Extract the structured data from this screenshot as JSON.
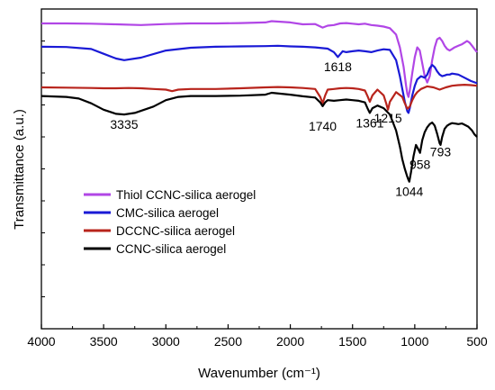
{
  "chart_data": {
    "type": "line",
    "title": "",
    "xlabel": "Wavenumber (cm⁻¹)",
    "ylabel": "Transmittance (a.u.)",
    "xlim": [
      4000,
      500
    ],
    "x_reversed": true,
    "ylim": [
      0,
      100
    ],
    "y_tick_labels_shown": false,
    "x_ticks": [
      4000,
      3500,
      3000,
      2500,
      2000,
      1500,
      1000,
      500
    ],
    "grid": false,
    "legend_position": "center-left",
    "series": [
      {
        "name": "Thiol CCNC-silica aerogel",
        "color": "#b146e6",
        "x": [
          4000,
          3800,
          3600,
          3400,
          3200,
          3000,
          2800,
          2600,
          2400,
          2200,
          2150,
          2000,
          1900,
          1800,
          1740,
          1700,
          1650,
          1600,
          1550,
          1500,
          1450,
          1400,
          1350,
          1300,
          1250,
          1200,
          1150,
          1120,
          1090,
          1070,
          1060,
          1050,
          1040,
          1020,
          1000,
          980,
          960,
          940,
          920,
          900,
          880,
          860,
          840,
          820,
          800,
          780,
          760,
          740,
          720,
          700,
          680,
          650,
          620,
          600,
          580,
          560,
          540,
          520,
          500
        ],
        "y": [
          95.5,
          95.5,
          95.4,
          95.2,
          95.0,
          95.3,
          95.5,
          95.5,
          95.6,
          95.8,
          96.2,
          95.8,
          95.2,
          95.3,
          94.2,
          94.8,
          95.0,
          95.5,
          95.6,
          95.4,
          95.2,
          95.4,
          95.0,
          94.8,
          94.5,
          94.0,
          92.0,
          88.0,
          82.0,
          76.0,
          73.5,
          72.5,
          74.5,
          80.0,
          85.0,
          88.0,
          87.0,
          83.0,
          79.0,
          77.0,
          79.0,
          84.0,
          88.0,
          90.5,
          91.0,
          90.0,
          88.5,
          87.5,
          87.0,
          87.5,
          88.0,
          88.5,
          89.0,
          89.5,
          90.0,
          89.5,
          88.5,
          87.5,
          86.5
        ]
      },
      {
        "name": "CMC-silica aerogel",
        "color": "#1a1ad6",
        "x": [
          4000,
          3800,
          3600,
          3500,
          3400,
          3335,
          3200,
          3000,
          2800,
          2600,
          2400,
          2200,
          2100,
          2000,
          1900,
          1800,
          1700,
          1650,
          1618,
          1580,
          1550,
          1500,
          1450,
          1400,
          1350,
          1300,
          1250,
          1200,
          1150,
          1120,
          1100,
          1080,
          1060,
          1050,
          1040,
          1020,
          1000,
          980,
          950,
          920,
          900,
          880,
          860,
          840,
          820,
          800,
          780,
          760,
          740,
          720,
          700,
          650,
          600,
          550,
          500
        ],
        "y": [
          88.2,
          88.1,
          87.5,
          86.0,
          84.5,
          84.0,
          84.8,
          87.0,
          87.9,
          88.2,
          88.3,
          88.4,
          88.5,
          88.3,
          88.2,
          88.0,
          87.6,
          86.5,
          85.0,
          86.8,
          86.5,
          86.8,
          87.0,
          86.8,
          86.5,
          87.0,
          87.4,
          87.2,
          84.0,
          79.0,
          75.0,
          71.0,
          68.0,
          67.5,
          69.0,
          73.0,
          76.0,
          78.0,
          79.0,
          78.5,
          79.5,
          81.5,
          82.5,
          81.8,
          80.5,
          79.5,
          79.0,
          79.2,
          79.5,
          79.5,
          79.8,
          79.5,
          78.5,
          77.5,
          76.8
        ]
      },
      {
        "name": "DCCNC-silica aerogel",
        "color": "#b8241c",
        "x": [
          4000,
          3800,
          3600,
          3500,
          3400,
          3300,
          3200,
          3100,
          3000,
          2950,
          2900,
          2800,
          2600,
          2400,
          2200,
          2100,
          2000,
          1900,
          1800,
          1760,
          1740,
          1720,
          1700,
          1650,
          1600,
          1550,
          1500,
          1450,
          1400,
          1380,
          1361,
          1340,
          1300,
          1250,
          1230,
          1215,
          1200,
          1150,
          1100,
          1080,
          1060,
          1040,
          1020,
          1000,
          980,
          950,
          900,
          850,
          800,
          750,
          700,
          650,
          600,
          550,
          500
        ],
        "y": [
          75.5,
          75.4,
          75.3,
          75.2,
          75.2,
          75.3,
          75.2,
          75.0,
          74.8,
          74.3,
          74.8,
          75.0,
          75.0,
          75.2,
          75.5,
          75.6,
          75.5,
          75.3,
          75.0,
          72.5,
          70.5,
          73.0,
          74.8,
          75.0,
          75.2,
          75.3,
          75.2,
          75.0,
          74.5,
          72.8,
          71.0,
          73.0,
          74.8,
          73.0,
          70.5,
          68.5,
          71.0,
          74.0,
          72.5,
          70.5,
          68.8,
          69.5,
          71.5,
          73.0,
          74.0,
          75.0,
          75.8,
          75.5,
          74.8,
          75.5,
          76.0,
          76.2,
          76.3,
          76.2,
          76.0
        ]
      },
      {
        "name": "CCNC-silica aerogel",
        "color": "#000000",
        "x": [
          4000,
          3800,
          3700,
          3600,
          3500,
          3400,
          3335,
          3250,
          3100,
          3000,
          2900,
          2800,
          2600,
          2400,
          2200,
          2150,
          2000,
          1900,
          1800,
          1760,
          1740,
          1720,
          1700,
          1650,
          1600,
          1550,
          1500,
          1450,
          1400,
          1380,
          1361,
          1340,
          1300,
          1250,
          1200,
          1150,
          1120,
          1100,
          1080,
          1060,
          1050,
          1044,
          1030,
          1010,
          990,
          970,
          958,
          940,
          920,
          900,
          880,
          860,
          840,
          820,
          800,
          793,
          780,
          760,
          740,
          720,
          700,
          680,
          650,
          620,
          600,
          570,
          540,
          520,
          500
        ],
        "y": [
          72.8,
          72.5,
          72.0,
          70.5,
          68.5,
          67.2,
          67.0,
          67.5,
          69.5,
          71.5,
          72.5,
          72.8,
          72.8,
          72.9,
          73.2,
          73.8,
          73.2,
          72.7,
          72.3,
          70.8,
          69.6,
          70.8,
          71.5,
          71.3,
          71.5,
          71.7,
          71.5,
          71.3,
          70.8,
          69.0,
          67.5,
          69.0,
          69.8,
          69.0,
          67.0,
          62.0,
          57.0,
          53.0,
          50.0,
          47.5,
          46.5,
          46.0,
          49.0,
          54.0,
          57.5,
          56.0,
          55.0,
          59.0,
          61.5,
          63.0,
          64.0,
          64.5,
          63.5,
          61.0,
          58.0,
          57.5,
          60.0,
          62.5,
          63.5,
          64.0,
          64.3,
          64.2,
          64.0,
          64.2,
          63.8,
          63.2,
          62.0,
          60.8,
          60.0
        ]
      }
    ],
    "annotations": [
      {
        "text": "1618",
        "x": 1618,
        "y": 80.5
      },
      {
        "text": "1215",
        "x": 1215,
        "y": 64.5
      },
      {
        "text": "3335",
        "x": 3335,
        "y": 62.5
      },
      {
        "text": "1740",
        "x": 1740,
        "y": 62.0
      },
      {
        "text": "1361",
        "x": 1361,
        "y": 63.0
      },
      {
        "text": "958",
        "x": 958,
        "y": 50.0
      },
      {
        "text": "793",
        "x": 793,
        "y": 54.0
      },
      {
        "text": "1044",
        "x": 1044,
        "y": 41.5
      }
    ]
  }
}
